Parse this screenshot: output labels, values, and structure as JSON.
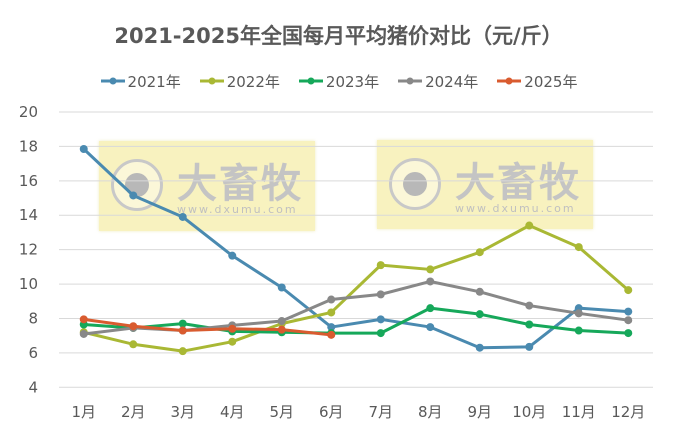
{
  "chart_data": {
    "type": "line",
    "title": "2021-2025年全国每月平均猪价对比（元/斤）",
    "xlabel": "",
    "ylabel": "",
    "ylim": [
      4,
      20
    ],
    "yticks": [
      4,
      6,
      8,
      10,
      12,
      14,
      16,
      18,
      20
    ],
    "grid": true,
    "legend_position": "top",
    "categories": [
      "1月",
      "2月",
      "3月",
      "4月",
      "5月",
      "6月",
      "7月",
      "8月",
      "9月",
      "10月",
      "11月",
      "12月"
    ],
    "series": [
      {
        "name": "2021年",
        "color": "#4a8ab0",
        "values": [
          17.85,
          15.15,
          13.9,
          11.65,
          9.8,
          7.5,
          7.95,
          7.5,
          6.3,
          6.35,
          8.6,
          8.4
        ]
      },
      {
        "name": "2022年",
        "color": "#a9b834",
        "values": [
          7.2,
          6.5,
          6.1,
          6.65,
          7.7,
          8.35,
          11.1,
          10.85,
          11.85,
          13.4,
          12.15,
          9.65
        ]
      },
      {
        "name": "2023年",
        "color": "#16a85a",
        "values": [
          7.65,
          7.45,
          7.7,
          7.25,
          7.2,
          7.15,
          7.15,
          8.6,
          8.25,
          7.65,
          7.3,
          7.15
        ]
      },
      {
        "name": "2024年",
        "color": "#888888",
        "values": [
          7.1,
          7.45,
          7.3,
          7.6,
          7.85,
          9.1,
          9.4,
          10.15,
          9.55,
          8.75,
          8.3,
          7.9
        ]
      },
      {
        "name": "2025年",
        "color": "#d95b2f",
        "values": [
          7.95,
          7.55,
          7.3,
          7.4,
          7.35,
          7.05
        ]
      }
    ]
  },
  "watermark": {
    "brand": "大畜牧",
    "url": "www.dxumu.com"
  }
}
